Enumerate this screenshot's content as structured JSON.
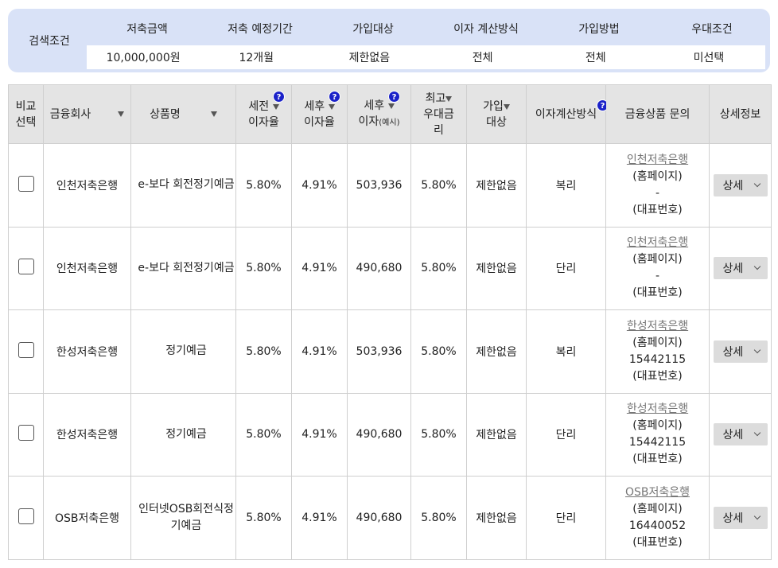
{
  "search": {
    "label": "검색조건",
    "headers": [
      "저축금액",
      "저축 예정기간",
      "가입대상",
      "이자 계산방식",
      "가입방법",
      "우대조건"
    ],
    "values": [
      "10,000,000원",
      "12개월",
      "제한없음",
      "전체",
      "전체",
      "미선택"
    ]
  },
  "table": {
    "h_compare_1": "비교",
    "h_compare_2": "선택",
    "h_company": "금융회사",
    "h_product": "상품명",
    "h_pretax_1": "세전",
    "h_pretax_2": "이자율",
    "h_aftertax_1": "세후",
    "h_aftertax_2": "이자율",
    "h_aftertax_int_1": "세후",
    "h_aftertax_int_2": "이자",
    "h_aftertax_int_note": "(예시)",
    "h_max_1": "최고",
    "h_max_2": "우대금",
    "h_max_3": "리",
    "h_target_1": "가입",
    "h_target_2": "대상",
    "h_calc": "이자계산방식",
    "h_inquiry": "금융상품 문의",
    "h_detail": "상세정보",
    "help_glyph": "?",
    "homepage_label": "(홈페이지)",
    "phone_label": "(대표번호)",
    "detail_label": "상세"
  },
  "rows": [
    {
      "company": "인천저축은행",
      "product": "e-보다 회전정기예금",
      "pretax": "5.80%",
      "aftertax": "4.91%",
      "interest": "503,936",
      "max_rate": "5.80%",
      "target": "제한없음",
      "calc": "복리",
      "link": "인천저축은행",
      "phone": "-"
    },
    {
      "company": "인천저축은행",
      "product": "e-보다 회전정기예금",
      "pretax": "5.80%",
      "aftertax": "4.91%",
      "interest": "490,680",
      "max_rate": "5.80%",
      "target": "제한없음",
      "calc": "단리",
      "link": "인천저축은행",
      "phone": "-"
    },
    {
      "company": "한성저축은행",
      "product": "정기예금",
      "pretax": "5.80%",
      "aftertax": "4.91%",
      "interest": "503,936",
      "max_rate": "5.80%",
      "target": "제한없음",
      "calc": "복리",
      "link": "한성저축은행",
      "phone": "15442115"
    },
    {
      "company": "한성저축은행",
      "product": "정기예금",
      "pretax": "5.80%",
      "aftertax": "4.91%",
      "interest": "490,680",
      "max_rate": "5.80%",
      "target": "제한없음",
      "calc": "단리",
      "link": "한성저축은행",
      "phone": "15442115"
    },
    {
      "company": "OSB저축은행",
      "product": "인터넷OSB회전식정기예금",
      "pretax": "5.80%",
      "aftertax": "4.91%",
      "interest": "490,680",
      "max_rate": "5.80%",
      "target": "제한없음",
      "calc": "단리",
      "link": "OSB저축은행",
      "phone": "16440052"
    }
  ]
}
